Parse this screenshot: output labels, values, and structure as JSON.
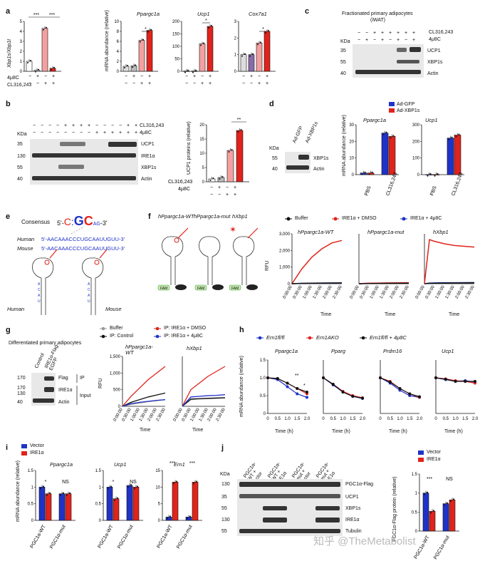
{
  "panels": {
    "a": {
      "label": "a",
      "ylabels": [
        "Xbp1s/Xbp1t",
        "mRNA abundance (relative)"
      ],
      "titles": [
        "Ppargc1a",
        "Ucp1",
        "Cox7a1"
      ],
      "row1": "4μ8C",
      "row2": "CL316,243",
      "sig": [
        "***",
        "***",
        "*",
        "*",
        "*"
      ]
    },
    "b": {
      "label": "b",
      "kda": "KDa",
      "rows": [
        "UCP1",
        "IRE1α",
        "XBP1s",
        "Actin"
      ],
      "mw": [
        "35",
        "130",
        "55",
        "40"
      ],
      "top": [
        "CL316,243",
        "4μ8C"
      ],
      "ylabel": "UCP1 proteins (relative)",
      "sig": "**"
    },
    "c": {
      "label": "c",
      "title": "Fractionated primary adipocytes",
      "sub": "(iWAT)",
      "kda": "KDa",
      "rows": [
        "UCP1",
        "XBP1s",
        "Actin"
      ],
      "mw": [
        "35",
        "55",
        "40"
      ],
      "top": [
        "CL316,243",
        "4μ8C"
      ]
    },
    "d": {
      "label": "d",
      "kda": "KDa",
      "rows": [
        "XBP1s",
        "Actin"
      ],
      "mw": [
        "55",
        "40"
      ],
      "lanes": [
        "Ad-GFP",
        "Ad-XBP1s"
      ],
      "legend": [
        "Ad-GFP",
        "Ad-XBP1s"
      ],
      "ylabel": "mRNA abundance (relative)",
      "titles": [
        "Ppargc1a",
        "Ucp1"
      ],
      "x": [
        "PBS",
        "CL316,243"
      ]
    },
    "e": {
      "label": "e",
      "consensus": "Consensus",
      "human": "Human",
      "mouse": "Mouse",
      "hseq": "5'-AACAAACCCUGCAAUUGUU-3'",
      "mseq": "5'-AACAAACCCUGCAAUUGUU-3'"
    },
    "f": {
      "label": "f",
      "constructs": [
        "hPpargc1a-WT",
        "hPpargc1a-mut",
        "hXbp1"
      ],
      "legend": [
        "Buffer",
        "IRE1α + DMSO",
        "IRE1α + 4μ8C"
      ],
      "ylabel": "RFU",
      "xlabel": "Time",
      "yticks": [
        "3,000",
        "2,000",
        "1,000",
        "0"
      ],
      "xticks": [
        "0:00:00",
        "0:30:00",
        "1:00:00",
        "1:30:00",
        "2:00:00",
        "2:30:00"
      ],
      "fam": "FAM",
      "bhq": "BHQ"
    },
    "g": {
      "label": "g",
      "title": "Differentiated primary adipocytes",
      "lanes": [
        "Control",
        "IRE1α-Flag-EGFP"
      ],
      "rows": [
        "Flag",
        "IRE1α",
        "Actin"
      ],
      "mw": [
        "170",
        "170",
        "130",
        "40"
      ],
      "ip": "IP",
      "input": "Input",
      "legend": [
        "Buffer",
        "IP: Control",
        "IP: IRE1α + DMSO",
        "IP: IRE1α + 4μ8C"
      ],
      "titles": [
        "hPpargc1a-WT",
        "hXbp1"
      ],
      "ylabel": "RFU",
      "xlabel": "Time",
      "yticks": [
        "1,500",
        "1,000",
        "500",
        "0"
      ]
    },
    "h": {
      "label": "h",
      "legend": [
        "Ern1fl/fl",
        "Ern1AKO",
        "Ern1fl/fl + 4μ8C"
      ],
      "titles": [
        "Ppargc1a",
        "Pparg",
        "Prdm16",
        "Ucp1"
      ],
      "ylabel": "mRNA abundance (relative)",
      "xlabel": "Time (h)",
      "xticks": [
        "0",
        "0.5",
        "1.0",
        "1.5",
        "2.0"
      ],
      "yticks": [
        "1.5",
        "1.0",
        "0.5",
        "0"
      ],
      "sig": "**"
    },
    "i": {
      "label": "i",
      "legend": [
        "Vector",
        "IRE1α"
      ],
      "titles": [
        "Ppargc1a",
        "Ucp1",
        "Ern1"
      ],
      "ylabel": "mRNA abundance (relative)",
      "x": [
        "PGC1α-WT",
        "PGC1α-mut"
      ],
      "sig": [
        "*",
        "NS",
        "*",
        "NS",
        "***",
        "***"
      ]
    },
    "j": {
      "label": "j",
      "kda": "KDa",
      "lanes": [
        "PGC1α-WT + vector",
        "PGC1α-WT + IRE1α",
        "PGC1α-mut + vector",
        "PGC1α-mut + IRE1α"
      ],
      "rows": [
        "PGC1α-Flag",
        "UCP1",
        "XBP1s",
        "IRE1α",
        "Tubulin"
      ],
      "mw": [
        "130",
        "35",
        "55",
        "130",
        "55"
      ],
      "legend": [
        "Vector",
        "IRE1α"
      ],
      "ylabel": "PGC1α-Flag protein (relative)",
      "x": [
        "PGC1α-WT",
        "PGC1α-mut"
      ],
      "sig": [
        "***",
        "NS"
      ]
    }
  },
  "watermark": "知乎 @TheMetabolist",
  "colors": {
    "red": "#e0231c",
    "blue": "#1f32c8",
    "pink": "#f4a0a0",
    "darkred": "#b01010"
  },
  "chart_data": [
    {
      "type": "bar",
      "title": "Xbp1s/Xbp1t",
      "categories": [
        "-/-",
        "+/-",
        "-/+",
        "+/+"
      ],
      "values": [
        1.0,
        0.1,
        4.3,
        0.3
      ],
      "ylim": [
        0,
        5
      ]
    },
    {
      "type": "bar",
      "title": "Ppargc1a",
      "categories": [
        "-/-",
        "+/-",
        "-/+",
        "+/+"
      ],
      "values": [
        1.0,
        1.1,
        6.2,
        8.2
      ],
      "ylim": [
        0,
        10
      ]
    },
    {
      "type": "bar",
      "title": "Ucp1",
      "categories": [
        "-/-",
        "+/-",
        "-/+",
        "+/+"
      ],
      "values": [
        1,
        1,
        110,
        180
      ],
      "ylim": [
        0,
        200
      ]
    },
    {
      "type": "bar",
      "title": "Cox7a1",
      "categories": [
        "-/-",
        "+/-",
        "-/+",
        "+/+"
      ],
      "values": [
        1.0,
        1.0,
        1.7,
        2.4
      ],
      "ylim": [
        0,
        3
      ]
    },
    {
      "type": "bar",
      "title": "UCP1 proteins",
      "categories": [
        "-/-",
        "+/-",
        "-/+",
        "+/+"
      ],
      "values": [
        1,
        1.5,
        11,
        18
      ],
      "ylim": [
        0,
        20
      ]
    },
    {
      "type": "bar",
      "title": "Ppargc1a (Ad)",
      "categories": [
        "PBS",
        "CL316,243"
      ],
      "series": [
        {
          "name": "Ad-GFP",
          "values": [
            1,
            25
          ]
        },
        {
          "name": "Ad-XBP1s",
          "values": [
            1,
            23
          ]
        }
      ],
      "ylim": [
        0,
        30
      ]
    },
    {
      "type": "bar",
      "title": "Ucp1 (Ad)",
      "categories": [
        "PBS",
        "CL316,243"
      ],
      "series": [
        {
          "name": "Ad-GFP",
          "values": [
            1,
            220
          ]
        },
        {
          "name": "Ad-XBP1s",
          "values": [
            1,
            238
          ]
        }
      ],
      "ylim": [
        0,
        300
      ]
    },
    {
      "type": "line",
      "title": "hPpargc1a-WT RFU",
      "x": [
        0,
        0.5,
        1,
        1.5,
        2,
        2.5
      ],
      "series": [
        {
          "name": "Buffer",
          "values": [
            0,
            20,
            30,
            40,
            45,
            50
          ]
        },
        {
          "name": "IRE1α + DMSO",
          "values": [
            0,
            900,
            1600,
            2100,
            2450,
            2600
          ]
        },
        {
          "name": "IRE1α + 4μ8C",
          "values": [
            0,
            20,
            30,
            40,
            45,
            50
          ]
        }
      ],
      "ylim": [
        0,
        3000
      ]
    },
    {
      "type": "line",
      "title": "hPpargc1a-mut RFU",
      "x": [
        0,
        0.5,
        1,
        1.5,
        2,
        2.5
      ],
      "series": [
        {
          "name": "Buffer",
          "values": [
            0,
            10,
            15,
            20,
            25,
            30
          ]
        },
        {
          "name": "IRE1α + DMSO",
          "values": [
            0,
            30,
            40,
            50,
            55,
            60
          ]
        },
        {
          "name": "IRE1α + 4μ8C",
          "values": [
            0,
            20,
            30,
            40,
            45,
            50
          ]
        }
      ],
      "ylim": [
        0,
        3000
      ]
    },
    {
      "type": "line",
      "title": "hXbp1 RFU",
      "x": [
        0,
        0.25,
        0.5,
        1,
        1.5,
        2,
        2.5
      ],
      "series": [
        {
          "name": "Buffer",
          "values": [
            0,
            20,
            30,
            40,
            45,
            50,
            55
          ]
        },
        {
          "name": "IRE1α + DMSO",
          "values": [
            0,
            2650,
            2550,
            2400,
            2300,
            2250,
            2200
          ]
        },
        {
          "name": "IRE1α + 4μ8C",
          "values": [
            0,
            40,
            50,
            60,
            60,
            65,
            70
          ]
        }
      ],
      "ylim": [
        0,
        3000
      ]
    },
    {
      "type": "bar",
      "title": "Ppargc1a (i)",
      "categories": [
        "PGC1α-WT",
        "PGC1α-mut"
      ],
      "series": [
        {
          "name": "Vector",
          "values": [
            1.0,
            0.8
          ]
        },
        {
          "name": "IRE1α",
          "values": [
            0.8,
            0.8
          ]
        }
      ],
      "ylim": [
        0,
        1.5
      ]
    },
    {
      "type": "bar",
      "title": "Ucp1 (i)",
      "categories": [
        "PGC1α-WT",
        "PGC1α-mut"
      ],
      "series": [
        {
          "name": "Vector",
          "values": [
            1.0,
            1.05
          ]
        },
        {
          "name": "IRE1α",
          "values": [
            0.65,
            1.0
          ]
        }
      ],
      "ylim": [
        0,
        1.5
      ]
    },
    {
      "type": "bar",
      "title": "Ern1 (i)",
      "categories": [
        "PGC1α-WT",
        "PGC1α-mut"
      ],
      "series": [
        {
          "name": "Vector",
          "values": [
            1,
            1
          ]
        },
        {
          "name": "IRE1α",
          "values": [
            11.5,
            11.5
          ]
        }
      ],
      "ylim": [
        0,
        15
      ]
    },
    {
      "type": "bar",
      "title": "PGC1α-Flag protein",
      "categories": [
        "PGC1α-WT",
        "PGC1α-mut"
      ],
      "series": [
        {
          "name": "Vector",
          "values": [
            1.0,
            0.72
          ]
        },
        {
          "name": "IRE1α",
          "values": [
            0.52,
            0.82
          ]
        }
      ],
      "ylim": [
        0,
        1.5
      ]
    }
  ]
}
